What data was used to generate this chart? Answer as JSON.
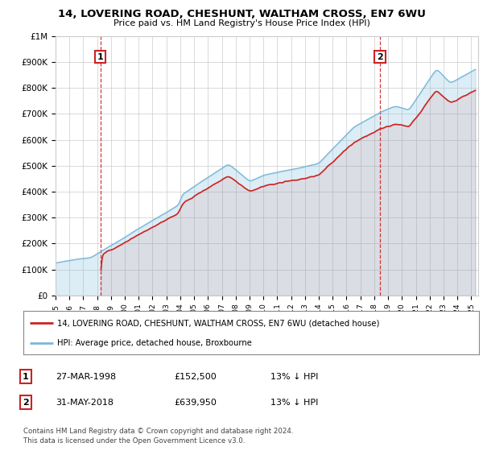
{
  "title": "14, LOVERING ROAD, CHESHUNT, WALTHAM CROSS, EN7 6WU",
  "subtitle": "Price paid vs. HM Land Registry's House Price Index (HPI)",
  "ylim": [
    0,
    1000000
  ],
  "yticks": [
    0,
    100000,
    200000,
    300000,
    400000,
    500000,
    600000,
    700000,
    800000,
    900000,
    1000000
  ],
  "ytick_labels": [
    "£0",
    "£100K",
    "£200K",
    "£300K",
    "£400K",
    "£500K",
    "£600K",
    "£700K",
    "£800K",
    "£900K",
    "£1M"
  ],
  "hpi_color": "#7ab8d9",
  "price_color": "#cc2222",
  "point1_date": 1998.23,
  "point1_price": 152500,
  "point1_label": "1",
  "point2_date": 2018.42,
  "point2_price": 639950,
  "point2_label": "2",
  "vline_color": "#cc2222",
  "legend_line1": "14, LOVERING ROAD, CHESHUNT, WALTHAM CROSS, EN7 6WU (detached house)",
  "legend_line2": "HPI: Average price, detached house, Broxbourne",
  "table_row1": [
    "1",
    "27-MAR-1998",
    "£152,500",
    "13% ↓ HPI"
  ],
  "table_row2": [
    "2",
    "31-MAY-2018",
    "£639,950",
    "13% ↓ HPI"
  ],
  "footnote": "Contains HM Land Registry data © Crown copyright and database right 2024.\nThis data is licensed under the Open Government Licence v3.0.",
  "bg_color": "#ffffff",
  "grid_color": "#cccccc",
  "xmin": 1995.0,
  "xmax": 2025.5
}
